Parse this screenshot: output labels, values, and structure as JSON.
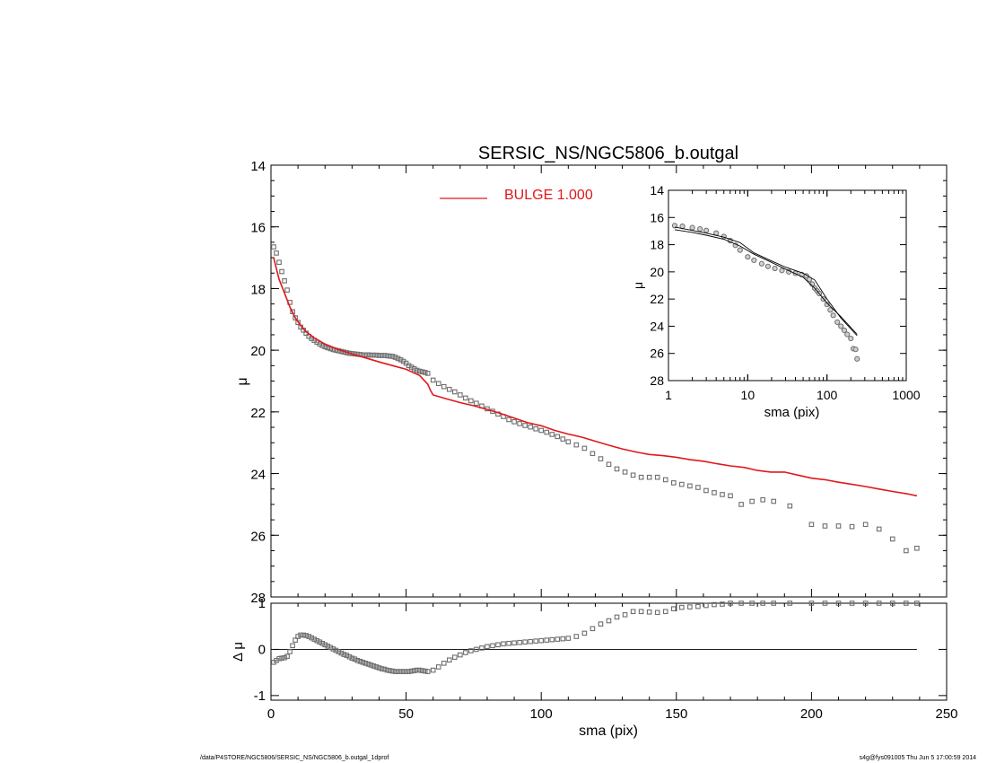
{
  "chart_data": [
    {
      "type": "scatter",
      "title": "SERSIC_NS/NGC5806_b.outgal",
      "xlabel": "",
      "ylabel": "μ",
      "xlim": [
        0,
        250
      ],
      "ylim": [
        14,
        28
      ],
      "y_inverted": true,
      "y_ticks": [
        14,
        16,
        18,
        20,
        22,
        24,
        26,
        28
      ],
      "legend": {
        "text": "BULGE  1.000",
        "color": "#e0181b",
        "placement": "top-center"
      },
      "series": [
        {
          "marker": "square",
          "color": "#6e6e6e",
          "x": [
            1,
            2,
            3,
            4,
            5,
            6,
            7,
            8,
            9,
            10,
            11,
            12,
            13,
            14,
            15,
            16,
            17,
            18,
            19,
            20,
            21,
            22,
            23,
            24,
            25,
            26,
            27,
            28,
            29,
            30,
            31,
            32,
            33,
            34,
            35,
            36,
            37,
            38,
            39,
            40,
            41,
            42,
            43,
            44,
            45,
            46,
            47,
            48,
            49,
            50,
            51,
            52,
            53,
            54,
            55,
            56,
            57,
            58,
            60,
            62,
            64,
            66,
            68,
            70,
            72,
            74,
            76,
            78,
            80,
            82,
            84,
            86,
            88,
            90,
            92,
            94,
            96,
            98,
            100,
            102,
            104,
            106,
            108,
            110,
            113,
            116,
            119,
            122,
            125,
            128,
            131,
            134,
            137,
            140,
            143,
            146,
            149,
            152,
            155,
            158,
            161,
            164,
            167,
            170,
            174,
            178,
            182,
            186,
            192,
            200,
            205,
            210,
            215,
            220,
            225,
            230,
            235,
            239
          ],
          "y": [
            16.65,
            16.85,
            17.15,
            17.45,
            17.75,
            18.05,
            18.45,
            18.75,
            18.95,
            19.1,
            19.25,
            19.35,
            19.45,
            19.55,
            19.62,
            19.68,
            19.74,
            19.8,
            19.85,
            19.89,
            19.92,
            19.95,
            19.98,
            20.0,
            20.02,
            20.04,
            20.06,
            20.08,
            20.1,
            20.11,
            20.12,
            20.13,
            20.14,
            20.15,
            20.15,
            20.15,
            20.16,
            20.16,
            20.16,
            20.17,
            20.17,
            20.17,
            20.18,
            20.19,
            20.2,
            20.23,
            20.27,
            20.31,
            20.36,
            20.42,
            20.5,
            20.55,
            20.6,
            20.65,
            20.68,
            20.7,
            20.72,
            20.75,
            20.97,
            21.08,
            21.18,
            21.27,
            21.35,
            21.45,
            21.55,
            21.64,
            21.72,
            21.81,
            21.9,
            21.98,
            22.07,
            22.15,
            22.25,
            22.32,
            22.38,
            22.44,
            22.49,
            22.55,
            22.6,
            22.66,
            22.73,
            22.8,
            22.88,
            22.97,
            23.07,
            23.18,
            23.35,
            23.52,
            23.7,
            23.85,
            23.95,
            24.05,
            24.12,
            24.12,
            24.12,
            24.2,
            24.3,
            24.35,
            24.4,
            24.45,
            24.55,
            24.62,
            24.68,
            24.72,
            25.0,
            24.9,
            24.85,
            24.9,
            25.05,
            25.65,
            25.7,
            25.7,
            25.72,
            25.65,
            25.8,
            26.12,
            26.5,
            26.42
          ]
        },
        {
          "type": "line",
          "name": "BULGE  1.000",
          "color": "#e0181b",
          "x": [
            1,
            3,
            5,
            7,
            9,
            11,
            13,
            16,
            20,
            25,
            30,
            35,
            40,
            45,
            50,
            52,
            55,
            58,
            59,
            60,
            65,
            70,
            75,
            80,
            85,
            90,
            95,
            100,
            105,
            110,
            115,
            120,
            125,
            130,
            135,
            140,
            145,
            150,
            155,
            160,
            165,
            170,
            175,
            180,
            185,
            190,
            195,
            200,
            205,
            210,
            215,
            220,
            225,
            230,
            235,
            239
          ],
          "y": [
            17.0,
            17.7,
            18.15,
            18.6,
            18.95,
            19.2,
            19.4,
            19.6,
            19.8,
            19.98,
            20.12,
            20.25,
            20.38,
            20.5,
            20.62,
            20.7,
            20.82,
            21.1,
            21.3,
            21.45,
            21.58,
            21.7,
            21.8,
            21.92,
            22.05,
            22.2,
            22.35,
            22.45,
            22.6,
            22.72,
            22.82,
            22.95,
            23.08,
            23.2,
            23.3,
            23.38,
            23.42,
            23.47,
            23.55,
            23.6,
            23.68,
            23.75,
            23.8,
            23.9,
            23.95,
            23.95,
            24.05,
            24.15,
            24.2,
            24.28,
            24.35,
            24.42,
            24.5,
            24.58,
            24.65,
            24.72
          ]
        }
      ]
    },
    {
      "type": "scatter",
      "title": "",
      "xlabel": "sma (pix)",
      "ylabel": "Δ μ",
      "xlim": [
        0,
        250
      ],
      "ylim": [
        -1.1,
        1.0
      ],
      "x_ticks": [
        0,
        50,
        100,
        150,
        200,
        250
      ],
      "y_ticks": [
        -1,
        0,
        1
      ],
      "reference_line": 0,
      "series": [
        {
          "marker": "square",
          "color": "#6e6e6e",
          "x": [
            1,
            2,
            3,
            4,
            5,
            6,
            7,
            8,
            9,
            10,
            11,
            12,
            13,
            14,
            15,
            16,
            17,
            18,
            19,
            20,
            21,
            22,
            23,
            24,
            25,
            26,
            27,
            28,
            29,
            30,
            31,
            32,
            33,
            34,
            35,
            36,
            37,
            38,
            39,
            40,
            41,
            42,
            43,
            44,
            45,
            46,
            47,
            48,
            49,
            50,
            51,
            52,
            53,
            54,
            55,
            56,
            57,
            58,
            60,
            62,
            64,
            66,
            68,
            70,
            72,
            74,
            76,
            78,
            80,
            82,
            84,
            86,
            88,
            90,
            92,
            94,
            96,
            98,
            100,
            102,
            104,
            106,
            108,
            110,
            113,
            116,
            119,
            122,
            125,
            128,
            131,
            134,
            137,
            140,
            143,
            146,
            149,
            152,
            155,
            158,
            161,
            164,
            167,
            170,
            174,
            178,
            182,
            186,
            192,
            200,
            205,
            210,
            215,
            220,
            225,
            230,
            235,
            239
          ],
          "y": [
            -0.28,
            -0.24,
            -0.2,
            -0.19,
            -0.18,
            -0.15,
            -0.05,
            0.08,
            0.2,
            0.28,
            0.31,
            0.31,
            0.3,
            0.28,
            0.25,
            0.22,
            0.19,
            0.16,
            0.13,
            0.1,
            0.07,
            0.04,
            0.01,
            -0.02,
            -0.05,
            -0.08,
            -0.11,
            -0.13,
            -0.16,
            -0.19,
            -0.21,
            -0.24,
            -0.26,
            -0.28,
            -0.3,
            -0.32,
            -0.34,
            -0.36,
            -0.38,
            -0.4,
            -0.42,
            -0.43,
            -0.45,
            -0.46,
            -0.47,
            -0.48,
            -0.48,
            -0.48,
            -0.48,
            -0.48,
            -0.48,
            -0.47,
            -0.46,
            -0.45,
            -0.45,
            -0.46,
            -0.47,
            -0.48,
            -0.45,
            -0.38,
            -0.3,
            -0.23,
            -0.17,
            -0.12,
            -0.07,
            -0.03,
            0.0,
            0.03,
            0.06,
            0.08,
            0.1,
            0.12,
            0.13,
            0.14,
            0.15,
            0.16,
            0.17,
            0.18,
            0.19,
            0.2,
            0.21,
            0.22,
            0.23,
            0.24,
            0.28,
            0.35,
            0.45,
            0.55,
            0.62,
            0.7,
            0.75,
            0.82,
            0.82,
            0.81,
            0.8,
            0.82,
            0.88,
            0.91,
            0.92,
            0.93,
            0.95,
            0.97,
            0.98,
            1.0,
            1.0,
            1.0,
            1.0,
            1.0,
            1.0,
            1.0,
            1.0,
            1.0,
            1.0,
            1.0,
            1.0,
            1.0,
            1.0,
            1.0
          ]
        }
      ]
    },
    {
      "type": "line",
      "title": "",
      "xlabel": "sma (pix)",
      "ylabel": "μ",
      "x_scale": "log",
      "xlim": [
        1,
        1000
      ],
      "ylim": [
        14,
        28
      ],
      "y_inverted": true,
      "x_ticks": [
        1,
        10,
        100,
        1000
      ],
      "y_ticks": [
        14,
        16,
        18,
        20,
        22,
        24,
        26,
        28
      ],
      "legend": {
        "placement": "top-right"
      },
      "series": [
        {
          "marker": "circle",
          "color": "#6e6e6e",
          "x": [
            1.2,
            1.5,
            2,
            2.5,
            3,
            4,
            5,
            6,
            7,
            8,
            10,
            12,
            15,
            18,
            22,
            27,
            33,
            40,
            48,
            55,
            60,
            65,
            70,
            75,
            80,
            90,
            100,
            110,
            120,
            135,
            150,
            165,
            180,
            200,
            215,
            230,
            240
          ],
          "y": [
            16.6,
            16.65,
            16.75,
            16.85,
            16.95,
            17.15,
            17.4,
            17.7,
            18.05,
            18.4,
            18.9,
            19.15,
            19.4,
            19.6,
            19.75,
            19.9,
            20.0,
            20.1,
            20.2,
            20.3,
            20.55,
            20.9,
            21.2,
            21.4,
            21.6,
            22.0,
            22.4,
            22.8,
            23.2,
            23.7,
            24.0,
            24.3,
            24.6,
            24.9,
            25.65,
            25.7,
            26.4
          ]
        },
        {
          "type": "line",
          "color": "#000000",
          "x": [
            1.2,
            2,
            3,
            5,
            8,
            12,
            20,
            30,
            50,
            70,
            100,
            150,
            200,
            240
          ],
          "y": [
            16.9,
            17.1,
            17.3,
            17.6,
            18.1,
            18.7,
            19.3,
            19.8,
            20.4,
            21.2,
            22.3,
            23.3,
            24.1,
            24.6
          ]
        },
        {
          "type": "line",
          "color": "#000000",
          "x": [
            1.2,
            2,
            3,
            5,
            8,
            12,
            20,
            30,
            50,
            70,
            100,
            150,
            200,
            240
          ],
          "y": [
            16.7,
            16.95,
            17.15,
            17.45,
            17.85,
            18.6,
            19.2,
            19.65,
            20.1,
            20.6,
            22.0,
            23.4,
            24.2,
            24.7
          ]
        }
      ]
    }
  ],
  "footer": {
    "left": "/data/P4STORE/NGC5806/SERSIC_NS/NGC5806_b.outgal_1dprof",
    "right": "s4g@fys091005  Thu Jun  5 17:00:59 2014"
  }
}
